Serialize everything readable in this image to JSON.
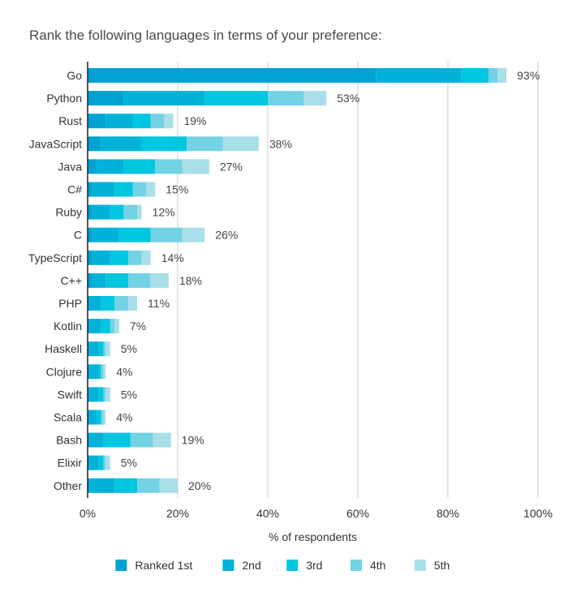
{
  "chart_data": {
    "type": "bar",
    "orientation": "horizontal",
    "stacked": true,
    "title": "Rank the following languages in terms of your preference:",
    "xlabel": "% of respondents",
    "ylabel": "",
    "xlim": [
      0,
      100
    ],
    "xticks": [
      0,
      20,
      40,
      60,
      80,
      100
    ],
    "xtick_labels": [
      "0%",
      "20%",
      "40%",
      "60%",
      "80%",
      "100%"
    ],
    "grid": true,
    "legend_position": "bottom",
    "categories": [
      "Go",
      "Python",
      "Rust",
      "JavaScript",
      "Java",
      "C#",
      "Ruby",
      "C",
      "TypeScript",
      "C++",
      "PHP",
      "Kotlin",
      "Haskell",
      "Clojure",
      "Swift",
      "Scala",
      "Bash",
      "Elixir",
      "Other"
    ],
    "totals": [
      "93%",
      "53%",
      "19%",
      "38%",
      "27%",
      "15%",
      "12%",
      "26%",
      "14%",
      "18%",
      "11%",
      "7%",
      "5%",
      "4%",
      "5%",
      "4%",
      "19%",
      "5%",
      "20%"
    ],
    "series": [
      {
        "name": "Ranked 1st",
        "color": "#00a2d1",
        "values": [
          64,
          8,
          4,
          3,
          2,
          1,
          1,
          1,
          1,
          1,
          0.5,
          0.5,
          0.5,
          0.5,
          0.5,
          0.5,
          0.5,
          0.5,
          0.5
        ]
      },
      {
        "name": "2nd",
        "color": "#00b2d8",
        "values": [
          19,
          18,
          6,
          9,
          6,
          5,
          4,
          6,
          4,
          3,
          2.5,
          2.5,
          2,
          2,
          2,
          1.5,
          3,
          2,
          5.5
        ]
      },
      {
        "name": "3rd",
        "color": "#00c6e0",
        "values": [
          6,
          14,
          4,
          10,
          7,
          4,
          3,
          7,
          4,
          5,
          3,
          2,
          1,
          0.5,
          1,
          1,
          6,
          1,
          5
        ]
      },
      {
        "name": "4th",
        "color": "#73d2e3",
        "values": [
          2,
          8,
          3,
          8,
          6,
          3,
          3,
          7,
          3,
          5,
          3,
          1,
          0.5,
          0.5,
          0.5,
          0.5,
          5,
          0.5,
          5
        ]
      },
      {
        "name": "5th",
        "color": "#a8dfe8",
        "values": [
          2,
          5,
          2,
          8,
          6,
          2,
          1,
          5,
          2,
          4,
          2,
          1,
          1,
          0.5,
          1,
          0.5,
          4,
          1,
          4
        ]
      }
    ]
  }
}
